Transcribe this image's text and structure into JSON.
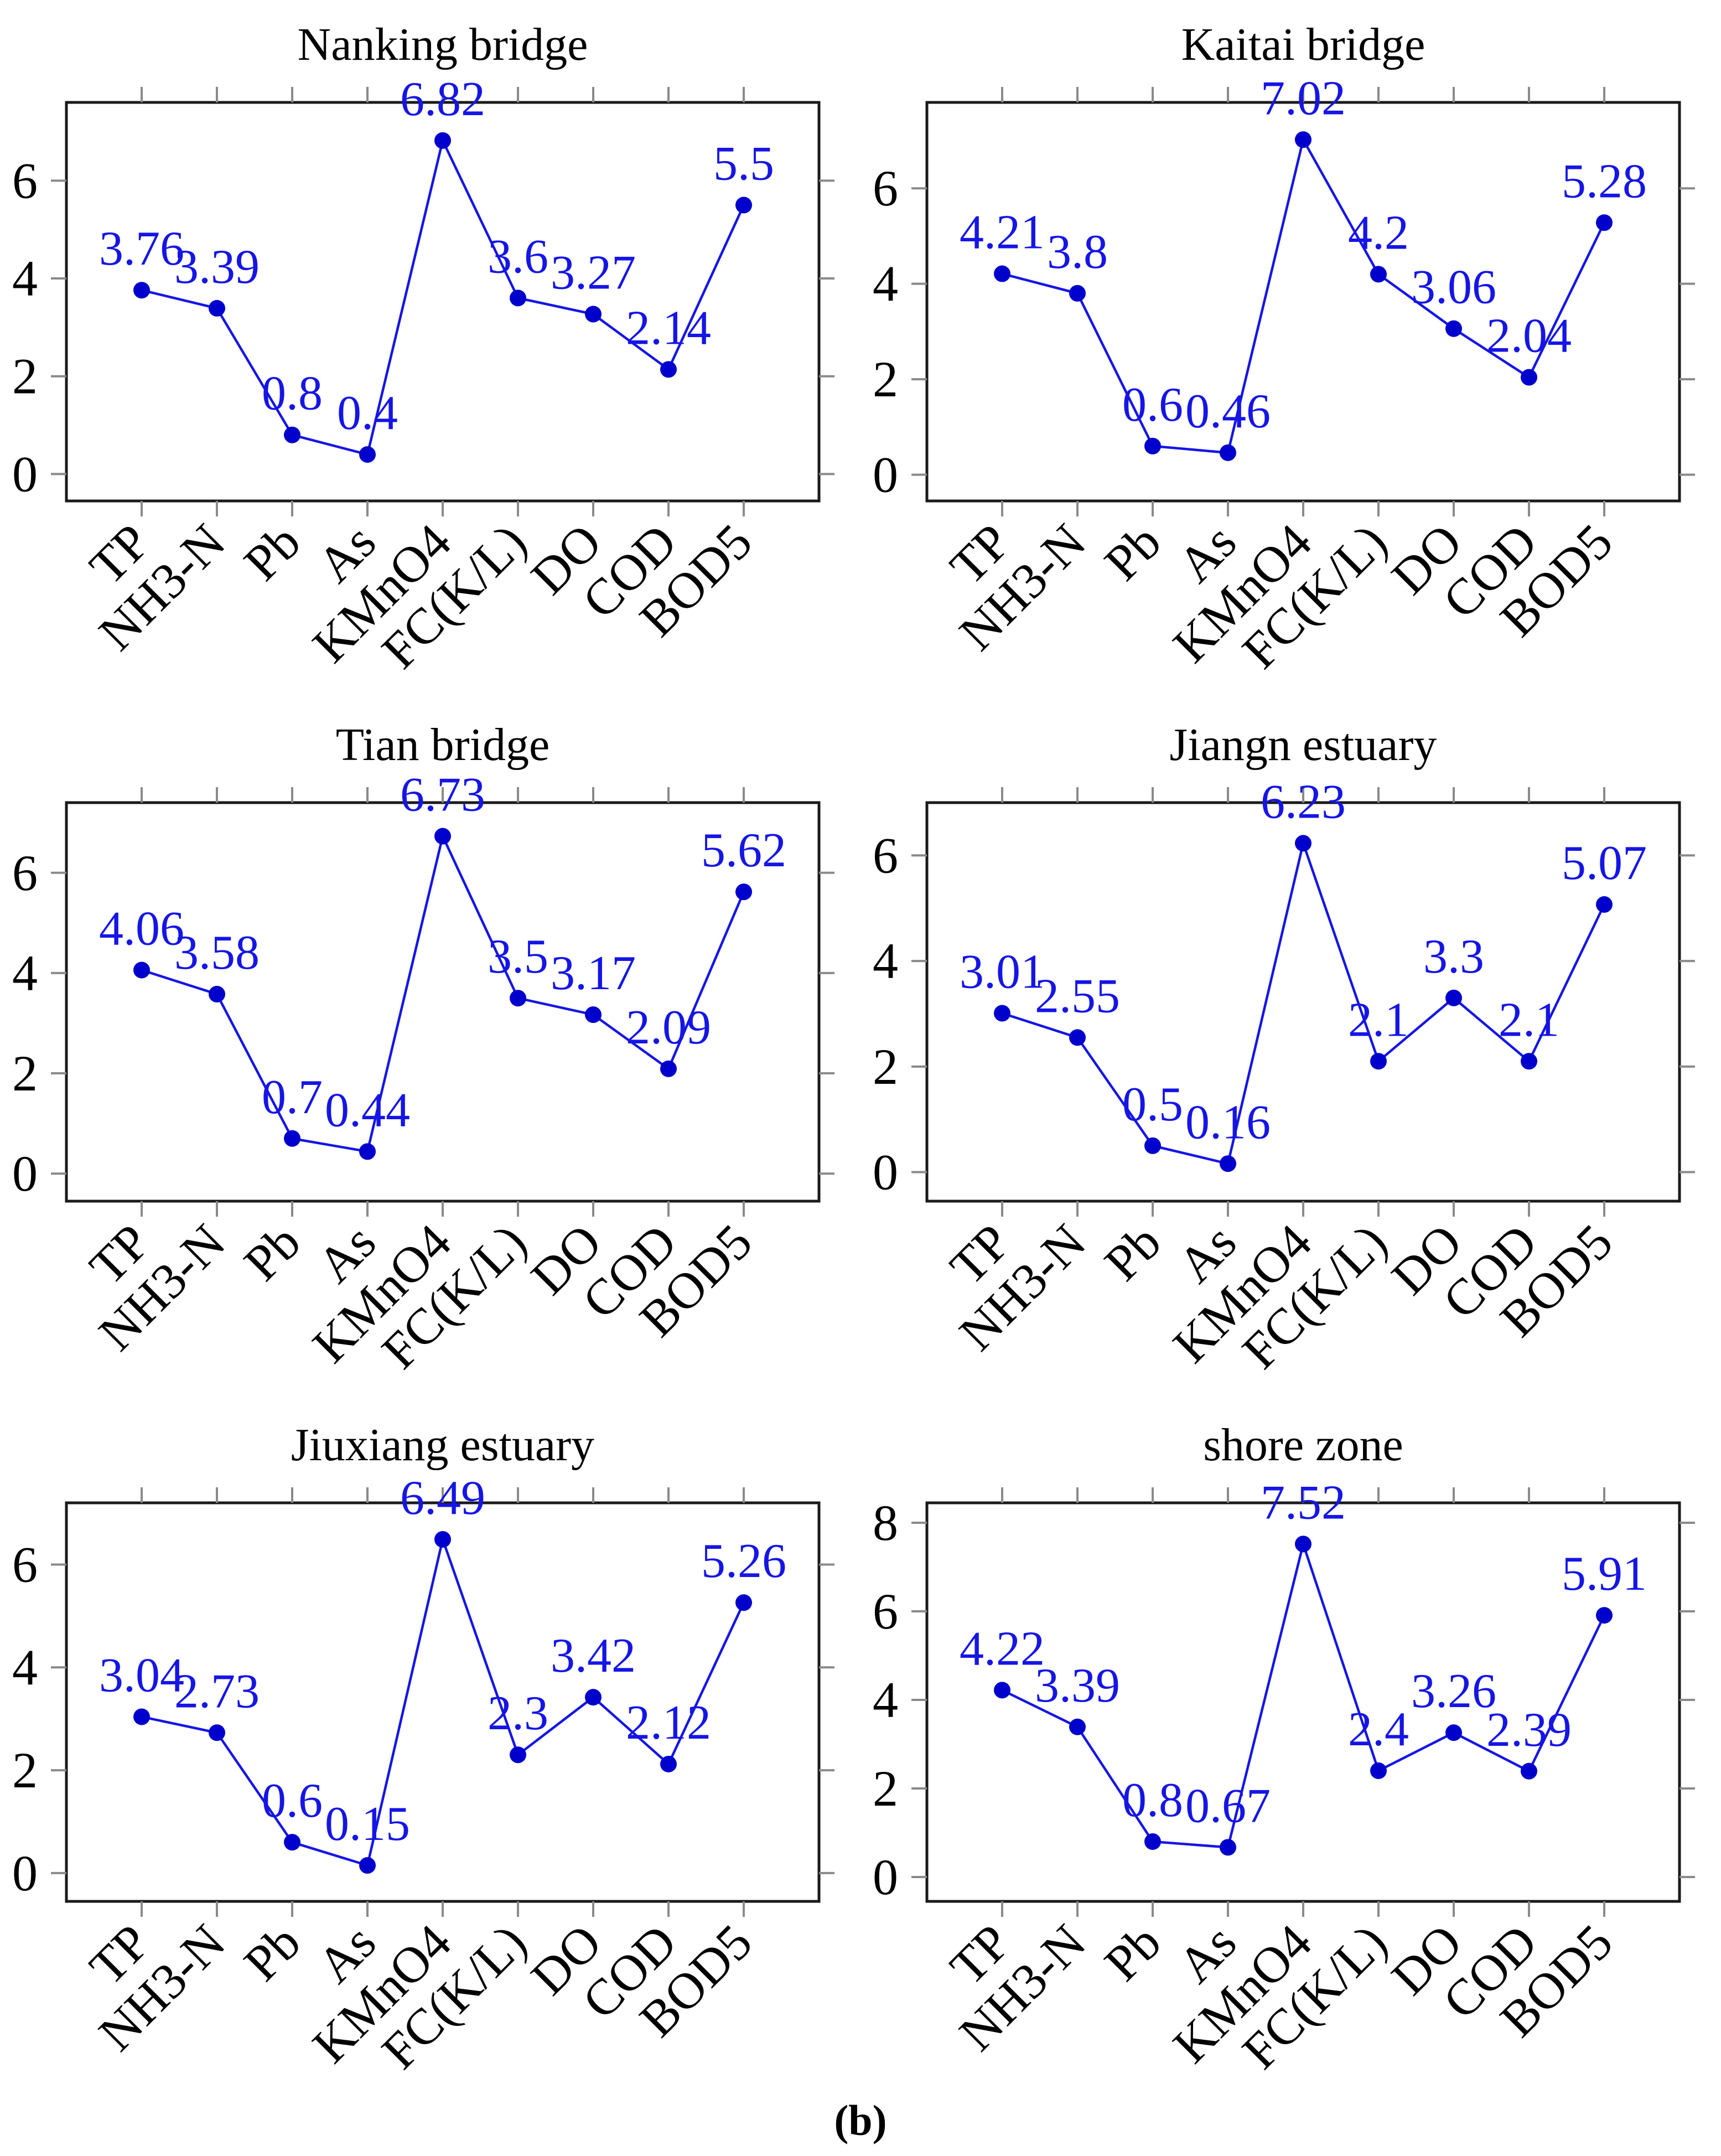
{
  "figure": {
    "caption": "(b)"
  },
  "style": {
    "line_color": "#1515e6",
    "marker_color": "#0000cc",
    "label_color": "#1515e6",
    "axis_color": "#1a1a1a",
    "tick_color": "#8a8a8a",
    "text_color": "#000000"
  },
  "chart_data": [
    {
      "type": "line",
      "title": "Nanking bridge",
      "categories": [
        "TP",
        "NH3-N",
        "Pb",
        "As",
        "KMnO4",
        "FC(K/L)",
        "DO",
        "COD",
        "BOD5"
      ],
      "values": [
        3.76,
        3.39,
        0.8,
        0.4,
        6.82,
        3.6,
        3.27,
        2.14,
        5.5
      ],
      "point_labels": [
        "3.76",
        "3.39",
        "0.8",
        "0.4",
        "6.82",
        "3.6",
        "3.27",
        "2.14",
        "5.5"
      ],
      "yticks": [
        0,
        2,
        4,
        6
      ],
      "ylim": [
        -0.55,
        7.6
      ],
      "xlabel": "",
      "ylabel": "",
      "grid": false,
      "legend": false
    },
    {
      "type": "line",
      "title": "Kaitai bridge",
      "categories": [
        "TP",
        "NH3-N",
        "Pb",
        "As",
        "KMnO4",
        "FC(K/L)",
        "DO",
        "COD",
        "BOD5"
      ],
      "values": [
        4.21,
        3.8,
        0.6,
        0.46,
        7.02,
        4.2,
        3.06,
        2.04,
        5.28
      ],
      "point_labels": [
        "4.21",
        "3.8",
        "0.6",
        "0.46",
        "7.02",
        "4.2",
        "3.06",
        "2.04",
        "5.28"
      ],
      "yticks": [
        0,
        2,
        4,
        6
      ],
      "ylim": [
        -0.55,
        7.8
      ],
      "xlabel": "",
      "ylabel": "",
      "grid": false,
      "legend": false
    },
    {
      "type": "line",
      "title": "Tian bridge",
      "categories": [
        "TP",
        "NH3-N",
        "Pb",
        "As",
        "KMnO4",
        "FC(K/L)",
        "DO",
        "COD",
        "BOD5"
      ],
      "values": [
        4.06,
        3.58,
        0.7,
        0.44,
        6.73,
        3.5,
        3.17,
        2.09,
        5.62
      ],
      "point_labels": [
        "4.06",
        "3.58",
        "0.7",
        "0.44",
        "6.73",
        "3.5",
        "3.17",
        "2.09",
        "5.62"
      ],
      "yticks": [
        0,
        2,
        4,
        6
      ],
      "ylim": [
        -0.55,
        7.4
      ],
      "xlabel": "",
      "ylabel": "",
      "grid": false,
      "legend": false
    },
    {
      "type": "line",
      "title": "Jiangn estuary",
      "categories": [
        "TP",
        "NH3-N",
        "Pb",
        "As",
        "KMnO4",
        "FC(K/L)",
        "DO",
        "COD",
        "BOD5"
      ],
      "values": [
        3.01,
        2.55,
        0.5,
        0.16,
        6.23,
        2.1,
        3.3,
        2.1,
        5.07
      ],
      "point_labels": [
        "3.01",
        "2.55",
        "0.5",
        "0.16",
        "6.23",
        "2.1",
        "3.3",
        "2.1",
        "5.07"
      ],
      "yticks": [
        0,
        2,
        4,
        6
      ],
      "ylim": [
        -0.55,
        7.0
      ],
      "xlabel": "",
      "ylabel": "",
      "grid": false,
      "legend": false
    },
    {
      "type": "line",
      "title": "Jiuxiang estuary",
      "categories": [
        "TP",
        "NH3-N",
        "Pb",
        "As",
        "KMnO4",
        "FC(K/L)",
        "DO",
        "COD",
        "BOD5"
      ],
      "values": [
        3.04,
        2.73,
        0.6,
        0.15,
        6.49,
        2.3,
        3.42,
        2.12,
        5.26
      ],
      "point_labels": [
        "3.04",
        "2.73",
        "0.6",
        "0.15",
        "6.49",
        "2.3",
        "3.42",
        "2.12",
        "5.26"
      ],
      "yticks": [
        0,
        2,
        4,
        6
      ],
      "ylim": [
        -0.55,
        7.2
      ],
      "xlabel": "",
      "ylabel": "",
      "grid": false,
      "legend": false
    },
    {
      "type": "line",
      "title": "shore zone",
      "categories": [
        "TP",
        "NH3-N",
        "Pb",
        "As",
        "KMnO4",
        "FC(K/L)",
        "DO",
        "COD",
        "BOD5"
      ],
      "values": [
        4.22,
        3.39,
        0.8,
        0.67,
        7.52,
        2.4,
        3.26,
        2.39,
        5.91
      ],
      "point_labels": [
        "4.22",
        "3.39",
        "0.8",
        "0.67",
        "7.52",
        "2.4",
        "3.26",
        "2.39",
        "5.91"
      ],
      "yticks": [
        0,
        2,
        4,
        6,
        8
      ],
      "ylim": [
        -0.55,
        8.45
      ],
      "xlabel": "",
      "ylabel": "",
      "grid": false,
      "legend": false
    }
  ]
}
